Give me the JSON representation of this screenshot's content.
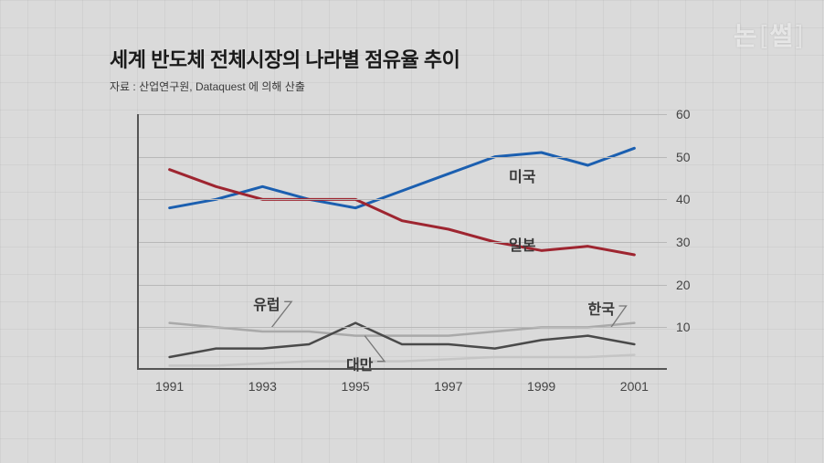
{
  "watermark": {
    "left": "논",
    "right": "썰"
  },
  "title": "세계 반도체 전체시장의 나라별 점유율 추이",
  "subtitle": "자료 : 산업연구원,  Dataquest 에 의해 산출",
  "chart": {
    "type": "line",
    "background_color": "#dadada",
    "grid_color": "#b8b8b8",
    "axis_color": "#555555",
    "label_fontsize": 14,
    "series_label_fontsize": 16,
    "x": [
      1991,
      1992,
      1993,
      1994,
      1995,
      1996,
      1997,
      1998,
      1999,
      2000,
      2001
    ],
    "xlim": [
      1990.3,
      2001.7
    ],
    "ylim": [
      0,
      60
    ],
    "ytick_step": 10,
    "xtick_step": 2,
    "xtick_start": 1991,
    "series": [
      {
        "name": "미국",
        "label": "미국",
        "color": "#1b5fb0",
        "width": 3,
        "values": [
          38,
          40,
          43,
          40,
          38,
          42,
          46,
          50,
          51,
          48,
          52
        ],
        "label_xy": [
          1998.3,
          46
        ]
      },
      {
        "name": "일본",
        "label": "일본",
        "color": "#9e2530",
        "width": 3,
        "values": [
          47,
          43,
          40,
          40,
          40,
          35,
          33,
          30,
          28,
          29,
          27
        ],
        "label_xy": [
          1998.3,
          30
        ]
      },
      {
        "name": "유럽",
        "label": "유럽",
        "color": "#a9a9a9",
        "width": 2.5,
        "values": [
          11,
          10,
          9,
          9,
          8,
          8,
          8,
          9,
          10,
          10,
          11
        ],
        "label_xy": [
          1992.8,
          16
        ],
        "leader_to": [
          1993.2,
          10
        ]
      },
      {
        "name": "대만",
        "label": "대만",
        "color": "#4a4a4a",
        "width": 2.5,
        "values": [
          3,
          5,
          5,
          6,
          11,
          6,
          6,
          5,
          7,
          8,
          6
        ],
        "label_xy": [
          1994.8,
          2
        ],
        "leader_to": [
          1995.2,
          8
        ]
      },
      {
        "name": "한국",
        "label": "한국",
        "color": "#c5c5c5",
        "width": 2.5,
        "values": [
          1,
          1,
          1.5,
          2,
          2,
          2,
          2.5,
          3,
          3,
          3,
          3.5
        ],
        "label_xy": [
          2000.0,
          15
        ],
        "leader_to": [
          2000.5,
          10
        ]
      }
    ]
  }
}
